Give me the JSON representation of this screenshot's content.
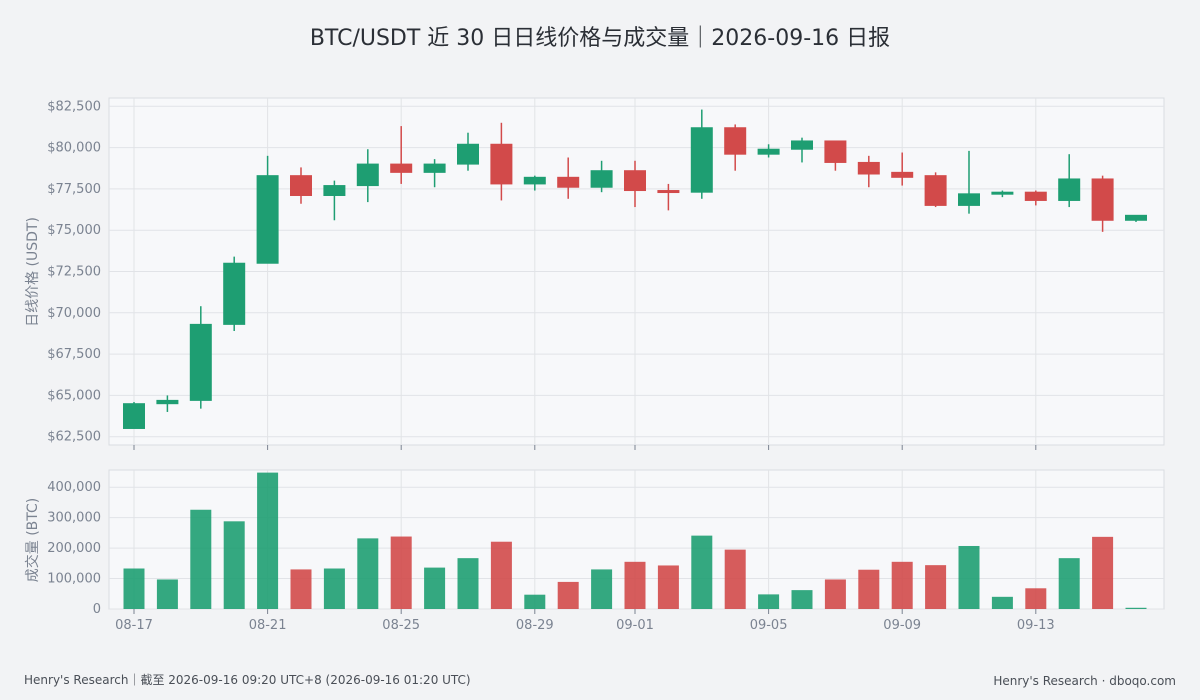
{
  "chart_data": {
    "type": "candlestick",
    "title": "BTC/USDT 近 30 日日线价格与成交量｜2026-09-16 日报",
    "price_panel": {
      "ylabel": "日线价格 (USDT)",
      "ylim": [
        62000,
        83000
      ],
      "yticks": [
        62500,
        65000,
        67500,
        70000,
        72500,
        75000,
        77500,
        80000,
        82500
      ],
      "ytick_labels": [
        "$62,500",
        "$65,000",
        "$67,500",
        "$70,000",
        "$72,500",
        "$75,000",
        "$77,500",
        "$80,000",
        "$82,500"
      ]
    },
    "volume_panel": {
      "ylabel": "成交量 (BTC)",
      "ylim": [
        0,
        450000
      ],
      "yticks": [
        0,
        100000,
        200000,
        300000,
        400000
      ],
      "ytick_labels": [
        "0",
        "100,000",
        "200,000",
        "300,000",
        "400,000"
      ]
    },
    "x_tick_labels": [
      {
        "index": 0,
        "label": "08-17"
      },
      {
        "index": 4,
        "label": "08-21"
      },
      {
        "index": 8,
        "label": "08-25"
      },
      {
        "index": 12,
        "label": "08-29"
      },
      {
        "index": 15,
        "label": "09-01"
      },
      {
        "index": 19,
        "label": "09-05"
      },
      {
        "index": 23,
        "label": "09-09"
      },
      {
        "index": 27,
        "label": "09-13"
      }
    ],
    "colors": {
      "up": "#1e9e72",
      "down": "#d24a4a"
    },
    "candles": [
      {
        "date": "08-17",
        "open": 63000,
        "high": 64600,
        "low": 63000,
        "close": 64500,
        "volume": 133000
      },
      {
        "date": "08-18",
        "open": 64500,
        "high": 65000,
        "low": 64000,
        "close": 64700,
        "volume": 97000
      },
      {
        "date": "08-19",
        "open": 64700,
        "high": 70400,
        "low": 64200,
        "close": 69300,
        "volume": 326000
      },
      {
        "date": "08-20",
        "open": 69300,
        "high": 73400,
        "low": 68900,
        "close": 73000,
        "volume": 288000
      },
      {
        "date": "08-21",
        "open": 73000,
        "high": 79500,
        "low": 73000,
        "close": 78300,
        "volume": 448000
      },
      {
        "date": "08-22",
        "open": 78300,
        "high": 78800,
        "low": 76600,
        "close": 77100,
        "volume": 130000
      },
      {
        "date": "08-23",
        "open": 77100,
        "high": 78000,
        "low": 75600,
        "close": 77700,
        "volume": 133000
      },
      {
        "date": "08-24",
        "open": 77700,
        "high": 79900,
        "low": 76700,
        "close": 79000,
        "volume": 232000
      },
      {
        "date": "08-25",
        "open": 79000,
        "high": 81300,
        "low": 77800,
        "close": 78500,
        "volume": 238000
      },
      {
        "date": "08-26",
        "open": 78500,
        "high": 79300,
        "low": 77600,
        "close": 79000,
        "volume": 136000
      },
      {
        "date": "08-27",
        "open": 79000,
        "high": 80900,
        "low": 78600,
        "close": 80200,
        "volume": 167000
      },
      {
        "date": "08-28",
        "open": 80200,
        "high": 81500,
        "low": 76800,
        "close": 77800,
        "volume": 221000
      },
      {
        "date": "08-29",
        "open": 77800,
        "high": 78300,
        "low": 77400,
        "close": 78200,
        "volume": 47000
      },
      {
        "date": "08-30",
        "open": 78200,
        "high": 79400,
        "low": 76900,
        "close": 77600,
        "volume": 89000
      },
      {
        "date": "08-31",
        "open": 77600,
        "high": 79200,
        "low": 77300,
        "close": 78600,
        "volume": 130000
      },
      {
        "date": "09-01",
        "open": 78600,
        "high": 79200,
        "low": 76400,
        "close": 77400,
        "volume": 155000
      },
      {
        "date": "09-02",
        "open": 77400,
        "high": 77800,
        "low": 76200,
        "close": 77300,
        "volume": 143000
      },
      {
        "date": "09-03",
        "open": 77300,
        "high": 82300,
        "low": 76900,
        "close": 81200,
        "volume": 241000
      },
      {
        "date": "09-04",
        "open": 81200,
        "high": 81400,
        "low": 78600,
        "close": 79600,
        "volume": 195000
      },
      {
        "date": "09-05",
        "open": 79600,
        "high": 80200,
        "low": 79400,
        "close": 79900,
        "volume": 48000
      },
      {
        "date": "09-06",
        "open": 79900,
        "high": 80600,
        "low": 79100,
        "close": 80400,
        "volume": 62000
      },
      {
        "date": "09-07",
        "open": 80400,
        "high": 80400,
        "low": 78600,
        "close": 79100,
        "volume": 97000
      },
      {
        "date": "09-08",
        "open": 79100,
        "high": 79500,
        "low": 77600,
        "close": 78400,
        "volume": 129000
      },
      {
        "date": "09-09",
        "open": 78500,
        "high": 79700,
        "low": 77700,
        "close": 78200,
        "volume": 155000
      },
      {
        "date": "09-10",
        "open": 78300,
        "high": 78500,
        "low": 76400,
        "close": 76500,
        "volume": 144000
      },
      {
        "date": "09-11",
        "open": 76500,
        "high": 79800,
        "low": 76000,
        "close": 77200,
        "volume": 207000
      },
      {
        "date": "09-12",
        "open": 77200,
        "high": 77400,
        "low": 77000,
        "close": 77300,
        "volume": 40000
      },
      {
        "date": "09-13",
        "open": 77300,
        "high": 77400,
        "low": 76500,
        "close": 76800,
        "volume": 68000
      },
      {
        "date": "09-14",
        "open": 76800,
        "high": 79600,
        "low": 76400,
        "close": 78100,
        "volume": 167000
      },
      {
        "date": "09-15",
        "open": 78100,
        "high": 78300,
        "low": 74900,
        "close": 75600,
        "volume": 237000
      },
      {
        "date": "09-16",
        "open": 75600,
        "high": 75900,
        "low": 75500,
        "close": 75900,
        "volume": 4000
      }
    ]
  },
  "footer": {
    "left": "Henry's Research｜截至 2026-09-16 09:20 UTC+8 (2026-09-16 01:20 UTC)",
    "right": "Henry's Research · dboqo.com"
  }
}
